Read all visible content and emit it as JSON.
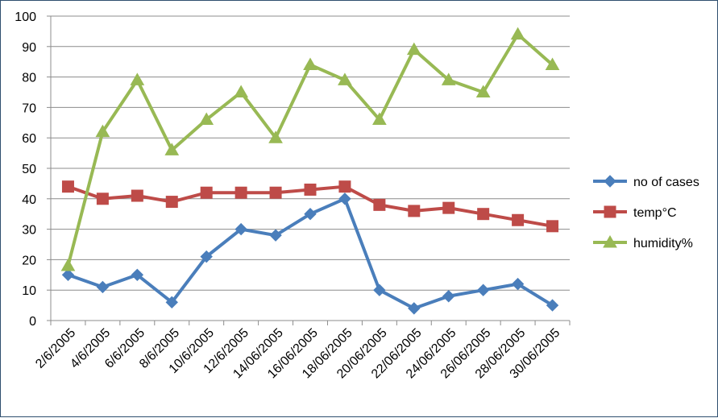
{
  "chart_data": {
    "type": "line",
    "title": "",
    "xlabel": "",
    "ylabel": "",
    "ylim": [
      0,
      100
    ],
    "yticks": [
      0,
      10,
      20,
      30,
      40,
      50,
      60,
      70,
      80,
      90,
      100
    ],
    "grid": true,
    "legend_position": "right",
    "categories": [
      "2/6/2005",
      "4/6/2005",
      "6/6/2005",
      "8/6/2005",
      "10/6/2005",
      "12/6/2005",
      "14/06/2005",
      "16/06/2005",
      "18/06/2005",
      "20/06/2005",
      "22/06/2005",
      "24/06/2005",
      "26/06/2005",
      "28/06/2005",
      "30/06/2005"
    ],
    "series": [
      {
        "name": "no of cases",
        "color": "#4a7ebb",
        "marker": "diamond",
        "values": [
          15,
          11,
          15,
          6,
          21,
          30,
          28,
          35,
          40,
          10,
          4,
          8,
          10,
          12,
          5
        ]
      },
      {
        "name": "temp°C",
        "color": "#be4b48",
        "marker": "square",
        "values": [
          44,
          40,
          41,
          39,
          42,
          42,
          42,
          43,
          44,
          38,
          36,
          37,
          35,
          33,
          31
        ]
      },
      {
        "name": "humidity%",
        "color": "#98b954",
        "marker": "triangle",
        "values": [
          18,
          62,
          79,
          56,
          66,
          75,
          60,
          84,
          79,
          66,
          89,
          79,
          75,
          94,
          84
        ]
      }
    ]
  }
}
